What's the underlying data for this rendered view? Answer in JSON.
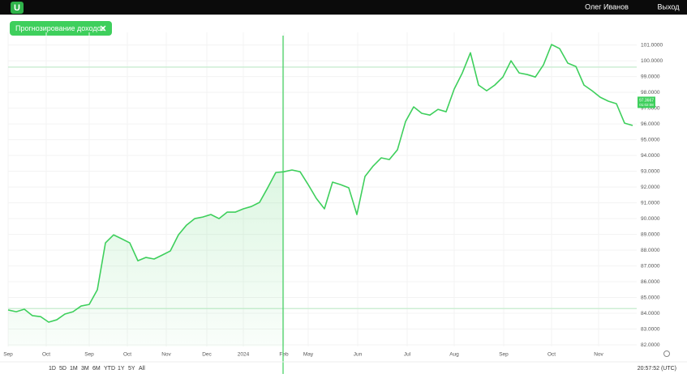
{
  "header": {
    "logo": "U",
    "user": "Олег Иванов",
    "logout": "Выход"
  },
  "filter_chip": {
    "label": "Прогнозирование доходов"
  },
  "chart_data": {
    "type": "line",
    "color": "#3ecf5c",
    "grid": true,
    "x": [
      0,
      1,
      2,
      3,
      4,
      5,
      6,
      7,
      8,
      9,
      10,
      11,
      12,
      13,
      14,
      15,
      16,
      17,
      18,
      19,
      20,
      21,
      22,
      23,
      24,
      25,
      26,
      27,
      28,
      29,
      30,
      31,
      32,
      33,
      34,
      35,
      36,
      37,
      38,
      39,
      40,
      41,
      42,
      43,
      44,
      45,
      46,
      47,
      48,
      49,
      50,
      51,
      52,
      53,
      54,
      55,
      56,
      57,
      58,
      59,
      60,
      61,
      62,
      63,
      64,
      65,
      66,
      67,
      68,
      69,
      70,
      71,
      72,
      73,
      74,
      75,
      76,
      77
    ],
    "values": [
      84.21,
      84.1,
      84.26,
      83.85,
      83.79,
      83.44,
      83.59,
      83.95,
      84.1,
      84.46,
      84.56,
      85.49,
      88.46,
      88.97,
      88.72,
      88.46,
      87.33,
      87.54,
      87.44,
      87.69,
      87.95,
      88.97,
      89.59,
      90.0,
      90.1,
      90.26,
      90.0,
      90.41,
      90.41,
      90.62,
      90.77,
      91.03,
      91.95,
      92.92,
      92.97,
      93.08,
      92.97,
      92.15,
      91.28,
      90.62,
      92.31,
      92.15,
      91.95,
      90.26,
      92.67,
      93.33,
      93.85,
      93.74,
      94.36,
      96.15,
      97.08,
      96.67,
      96.56,
      96.92,
      96.77,
      98.21,
      99.23,
      100.51,
      98.46,
      98.1,
      98.46,
      98.97,
      100.0,
      99.23,
      99.13,
      98.97,
      99.74,
      101.03,
      100.77,
      99.85,
      99.64,
      98.46,
      98.1,
      97.69,
      97.44,
      97.28,
      96.05,
      95.9
    ],
    "xlim": [
      0,
      77.5
    ],
    "xticks": [
      {
        "value": 0,
        "label": "Sep"
      },
      {
        "value": 4.7,
        "label": "Oct"
      },
      {
        "value": 10,
        "label": "Sep"
      },
      {
        "value": 14.7,
        "label": "Oct"
      },
      {
        "value": 19.5,
        "label": "Nov"
      },
      {
        "value": 24.5,
        "label": "Dec"
      },
      {
        "value": 29,
        "label": "2024"
      },
      {
        "value": 34,
        "label": "Feb"
      },
      {
        "value": 37,
        "label": "May"
      },
      {
        "value": 43.1,
        "label": "Jun"
      },
      {
        "value": 49.2,
        "label": "Jul"
      },
      {
        "value": 55,
        "label": "Aug"
      },
      {
        "value": 61.1,
        "label": "Sep"
      },
      {
        "value": 67,
        "label": "Oct"
      },
      {
        "value": 72.8,
        "label": "Nov"
      }
    ],
    "ylim": [
      81.9,
      101.8
    ],
    "yticks": [
      {
        "value": 82,
        "label": "82.0000"
      },
      {
        "value": 83,
        "label": "83.0000"
      },
      {
        "value": 84,
        "label": "84.0000"
      },
      {
        "value": 85,
        "label": "85.0000"
      },
      {
        "value": 86,
        "label": "86.0000"
      },
      {
        "value": 87,
        "label": "87.0000"
      },
      {
        "value": 88,
        "label": "88.0000"
      },
      {
        "value": 89,
        "label": "89.0000"
      },
      {
        "value": 90,
        "label": "90.0000"
      },
      {
        "value": 91,
        "label": "91.0000"
      },
      {
        "value": 92,
        "label": "92.0000"
      },
      {
        "value": 93,
        "label": "93.0000"
      },
      {
        "value": 94,
        "label": "94.0000"
      },
      {
        "value": 95,
        "label": "95.0000"
      },
      {
        "value": 96,
        "label": "96.0000"
      },
      {
        "value": 97,
        "label": "97.0000"
      },
      {
        "value": 98,
        "label": "98.0000"
      },
      {
        "value": 99,
        "label": "99.0000"
      },
      {
        "value": 100,
        "label": "100.0000"
      },
      {
        "value": 101,
        "label": "101.0000"
      }
    ],
    "divider_x": 33.9,
    "reference_lines": [
      99.6,
      84.3
    ],
    "price_label": 97.3667,
    "countdown": "01:02:08"
  },
  "range_buttons": [
    "1D",
    "5D",
    "1M",
    "3M",
    "6M",
    "YTD",
    "1Y",
    "5Y",
    "All"
  ],
  "clock": "20:57:52 (UTC)"
}
